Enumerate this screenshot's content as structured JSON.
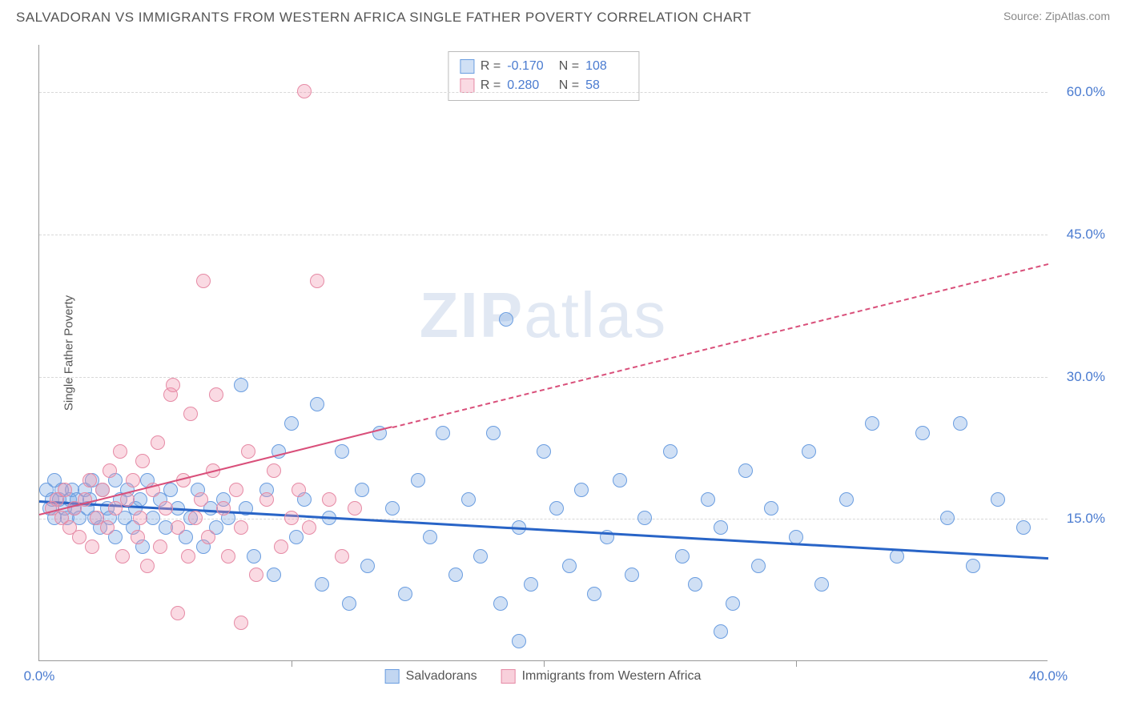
{
  "header": {
    "title": "SALVADORAN VS IMMIGRANTS FROM WESTERN AFRICA SINGLE FATHER POVERTY CORRELATION CHART",
    "source": "Source: ZipAtlas.com"
  },
  "chart": {
    "type": "scatter",
    "ylabel": "Single Father Poverty",
    "xlim": [
      0,
      40
    ],
    "ylim": [
      0,
      65
    ],
    "xtick_labels": [
      {
        "v": 0,
        "t": "0.0%"
      },
      {
        "v": 40,
        "t": "40.0%"
      }
    ],
    "xtick_marks": [
      10,
      20,
      30
    ],
    "ytick_labels": [
      {
        "v": 15,
        "t": "15.0%"
      },
      {
        "v": 30,
        "t": "30.0%"
      },
      {
        "v": 45,
        "t": "45.0%"
      },
      {
        "v": 60,
        "t": "60.0%"
      }
    ],
    "grid_y": [
      15,
      30,
      45,
      60
    ],
    "background_color": "#ffffff",
    "grid_color": "#d8d8d8",
    "watermark": {
      "bold": "ZIP",
      "rest": "atlas"
    },
    "series": [
      {
        "name": "Salvadorans",
        "fill": "rgba(120,165,225,0.35)",
        "stroke": "#6a9de0",
        "reg_color": "#2864c7",
        "reg_width": 3,
        "reg_dash_after_x": 999,
        "reg": {
          "x1": 0,
          "y1": 17.0,
          "x2": 40,
          "y2": 11.0
        },
        "R": "-0.170",
        "N": "108",
        "points": [
          [
            0.3,
            18
          ],
          [
            0.4,
            16
          ],
          [
            0.5,
            17
          ],
          [
            0.6,
            19
          ],
          [
            0.6,
            15
          ],
          [
            0.8,
            17
          ],
          [
            0.9,
            18
          ],
          [
            1.0,
            16
          ],
          [
            1.1,
            15
          ],
          [
            1.2,
            17
          ],
          [
            1.3,
            18
          ],
          [
            1.4,
            16
          ],
          [
            1.5,
            17
          ],
          [
            1.6,
            15
          ],
          [
            1.8,
            18
          ],
          [
            1.9,
            16
          ],
          [
            2.0,
            17
          ],
          [
            2.1,
            19
          ],
          [
            2.2,
            15
          ],
          [
            2.4,
            14
          ],
          [
            2.5,
            18
          ],
          [
            2.7,
            16
          ],
          [
            2.8,
            15
          ],
          [
            3.0,
            19
          ],
          [
            3.0,
            13
          ],
          [
            3.2,
            17
          ],
          [
            3.4,
            15
          ],
          [
            3.5,
            18
          ],
          [
            3.7,
            14
          ],
          [
            3.8,
            16
          ],
          [
            4.0,
            17
          ],
          [
            4.1,
            12
          ],
          [
            4.3,
            19
          ],
          [
            4.5,
            15
          ],
          [
            4.8,
            17
          ],
          [
            5.0,
            14
          ],
          [
            5.2,
            18
          ],
          [
            5.5,
            16
          ],
          [
            5.8,
            13
          ],
          [
            6.0,
            15
          ],
          [
            6.3,
            18
          ],
          [
            6.5,
            12
          ],
          [
            6.8,
            16
          ],
          [
            7.0,
            14
          ],
          [
            7.3,
            17
          ],
          [
            7.5,
            15
          ],
          [
            8.0,
            29
          ],
          [
            8.2,
            16
          ],
          [
            8.5,
            11
          ],
          [
            9.0,
            18
          ],
          [
            9.3,
            9
          ],
          [
            9.5,
            22
          ],
          [
            10.0,
            25
          ],
          [
            10.2,
            13
          ],
          [
            10.5,
            17
          ],
          [
            11.0,
            27
          ],
          [
            11.2,
            8
          ],
          [
            11.5,
            15
          ],
          [
            12.0,
            22
          ],
          [
            12.3,
            6
          ],
          [
            12.8,
            18
          ],
          [
            13.0,
            10
          ],
          [
            13.5,
            24
          ],
          [
            14.0,
            16
          ],
          [
            14.5,
            7
          ],
          [
            15.0,
            19
          ],
          [
            15.5,
            13
          ],
          [
            16.0,
            24
          ],
          [
            16.5,
            9
          ],
          [
            17.0,
            17
          ],
          [
            17.5,
            11
          ],
          [
            18.0,
            24
          ],
          [
            18.3,
            6
          ],
          [
            18.5,
            36
          ],
          [
            19.0,
            14
          ],
          [
            19.5,
            8
          ],
          [
            20.0,
            22
          ],
          [
            20.5,
            16
          ],
          [
            21.0,
            10
          ],
          [
            21.5,
            18
          ],
          [
            22.0,
            7
          ],
          [
            22.5,
            13
          ],
          [
            23.0,
            19
          ],
          [
            23.5,
            9
          ],
          [
            24.0,
            15
          ],
          [
            25.0,
            22
          ],
          [
            25.5,
            11
          ],
          [
            26.0,
            8
          ],
          [
            26.5,
            17
          ],
          [
            27.0,
            14
          ],
          [
            27.5,
            6
          ],
          [
            28.0,
            20
          ],
          [
            28.5,
            10
          ],
          [
            29.0,
            16
          ],
          [
            30.0,
            13
          ],
          [
            30.5,
            22
          ],
          [
            31.0,
            8
          ],
          [
            32.0,
            17
          ],
          [
            33.0,
            25
          ],
          [
            34.0,
            11
          ],
          [
            35.0,
            24
          ],
          [
            36.0,
            15
          ],
          [
            36.5,
            25
          ],
          [
            37.0,
            10
          ],
          [
            38.0,
            17
          ],
          [
            39.0,
            14
          ],
          [
            27.0,
            3
          ],
          [
            19.0,
            2
          ]
        ]
      },
      {
        "name": "Immigrants from Western Africa",
        "fill": "rgba(240,150,175,0.35)",
        "stroke": "#e68aa5",
        "reg_color": "#d94f7a",
        "reg_width": 2,
        "reg_dash_after_x": 14,
        "reg": {
          "x1": 0,
          "y1": 15.5,
          "x2": 40,
          "y2": 42.0
        },
        "R": "0.280",
        "N": "58",
        "points": [
          [
            0.5,
            16
          ],
          [
            0.7,
            17
          ],
          [
            0.9,
            15
          ],
          [
            1.0,
            18
          ],
          [
            1.2,
            14
          ],
          [
            1.4,
            16
          ],
          [
            1.6,
            13
          ],
          [
            1.8,
            17
          ],
          [
            2.0,
            19
          ],
          [
            2.1,
            12
          ],
          [
            2.3,
            15
          ],
          [
            2.5,
            18
          ],
          [
            2.7,
            14
          ],
          [
            2.8,
            20
          ],
          [
            3.0,
            16
          ],
          [
            3.2,
            22
          ],
          [
            3.3,
            11
          ],
          [
            3.5,
            17
          ],
          [
            3.7,
            19
          ],
          [
            3.9,
            13
          ],
          [
            4.0,
            15
          ],
          [
            4.1,
            21
          ],
          [
            4.3,
            10
          ],
          [
            4.5,
            18
          ],
          [
            4.7,
            23
          ],
          [
            4.8,
            12
          ],
          [
            5.0,
            16
          ],
          [
            5.2,
            28
          ],
          [
            5.3,
            29
          ],
          [
            5.5,
            14
          ],
          [
            5.7,
            19
          ],
          [
            5.9,
            11
          ],
          [
            6.0,
            26
          ],
          [
            6.2,
            15
          ],
          [
            6.4,
            17
          ],
          [
            6.5,
            40
          ],
          [
            6.7,
            13
          ],
          [
            6.9,
            20
          ],
          [
            7.0,
            28
          ],
          [
            7.3,
            16
          ],
          [
            7.5,
            11
          ],
          [
            7.8,
            18
          ],
          [
            8.0,
            14
          ],
          [
            8.3,
            22
          ],
          [
            8.6,
            9
          ],
          [
            9.0,
            17
          ],
          [
            9.3,
            20
          ],
          [
            9.6,
            12
          ],
          [
            10.0,
            15
          ],
          [
            10.3,
            18
          ],
          [
            10.5,
            60
          ],
          [
            10.7,
            14
          ],
          [
            11.0,
            40
          ],
          [
            11.5,
            17
          ],
          [
            12.0,
            11
          ],
          [
            12.5,
            16
          ],
          [
            5.5,
            5
          ],
          [
            8.0,
            4
          ]
        ]
      }
    ],
    "bottom_legend": [
      {
        "label": "Salvadorans",
        "fill": "rgba(120,165,225,0.45)",
        "stroke": "#6a9de0"
      },
      {
        "label": "Immigrants from Western Africa",
        "fill": "rgba(240,150,175,0.45)",
        "stroke": "#e68aa5"
      }
    ],
    "point_radius": 9
  }
}
